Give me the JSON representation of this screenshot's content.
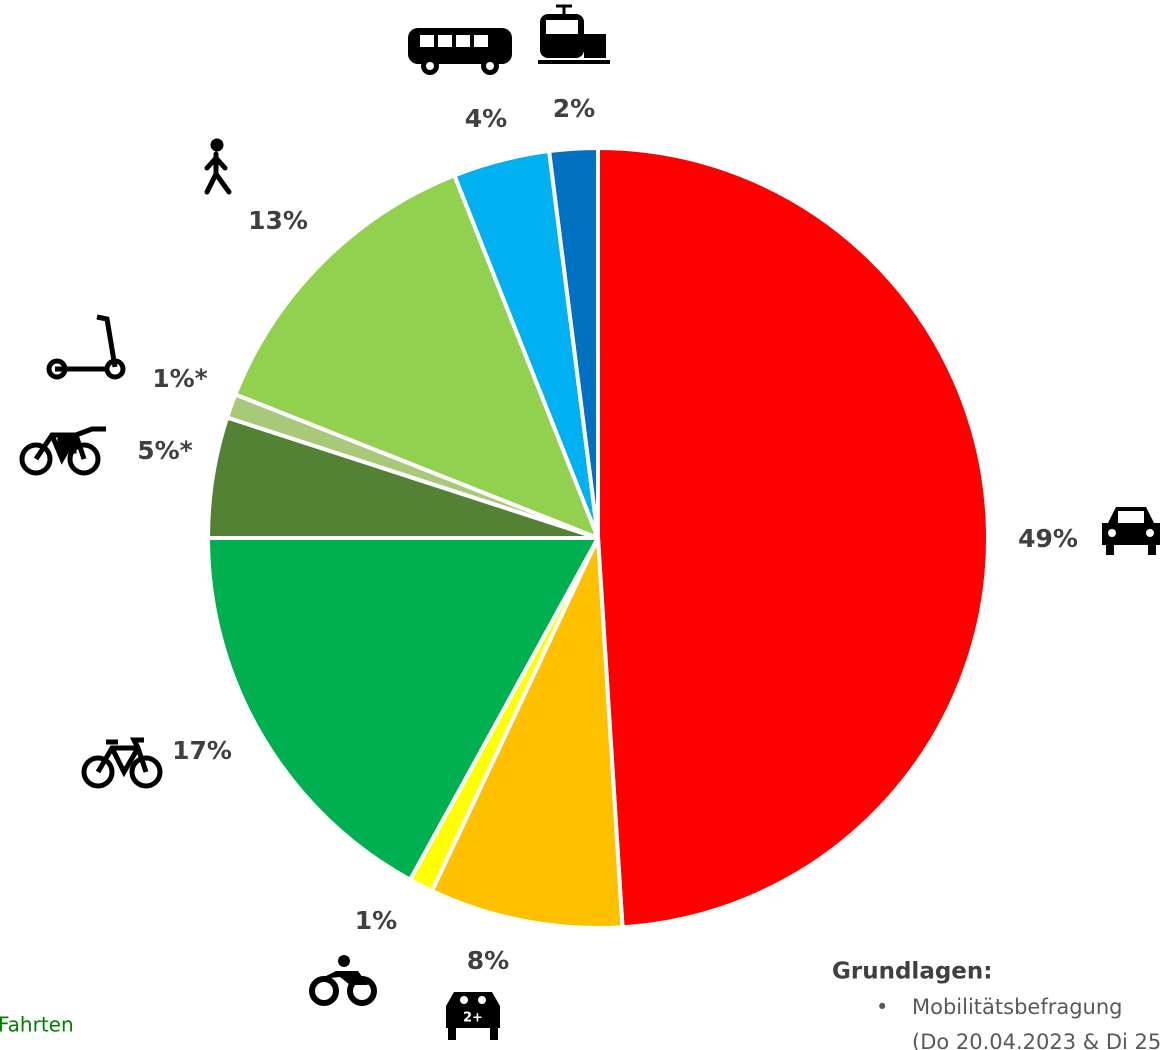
{
  "chart_data": {
    "type": "pie",
    "values": [
      49,
      8,
      1,
      17,
      5,
      1,
      13,
      4,
      2
    ],
    "value_labels": [
      "49%",
      "8%",
      "1%",
      "17%",
      "5%*",
      "1%*",
      "13%",
      "4%",
      "2%"
    ],
    "colors": [
      "#ff0000",
      "#ffc000",
      "#ffff00",
      "#00b050",
      "#548235",
      "#a9c97a",
      "#92d050",
      "#00b0f0",
      "#0070c0"
    ]
  },
  "annotation": "Fahrten",
  "footnote": {
    "title": "Grundlagen:",
    "items": [
      "Mobilitätsbefragung",
      "(Do 20.04.2023 & Di 25"
    ]
  }
}
